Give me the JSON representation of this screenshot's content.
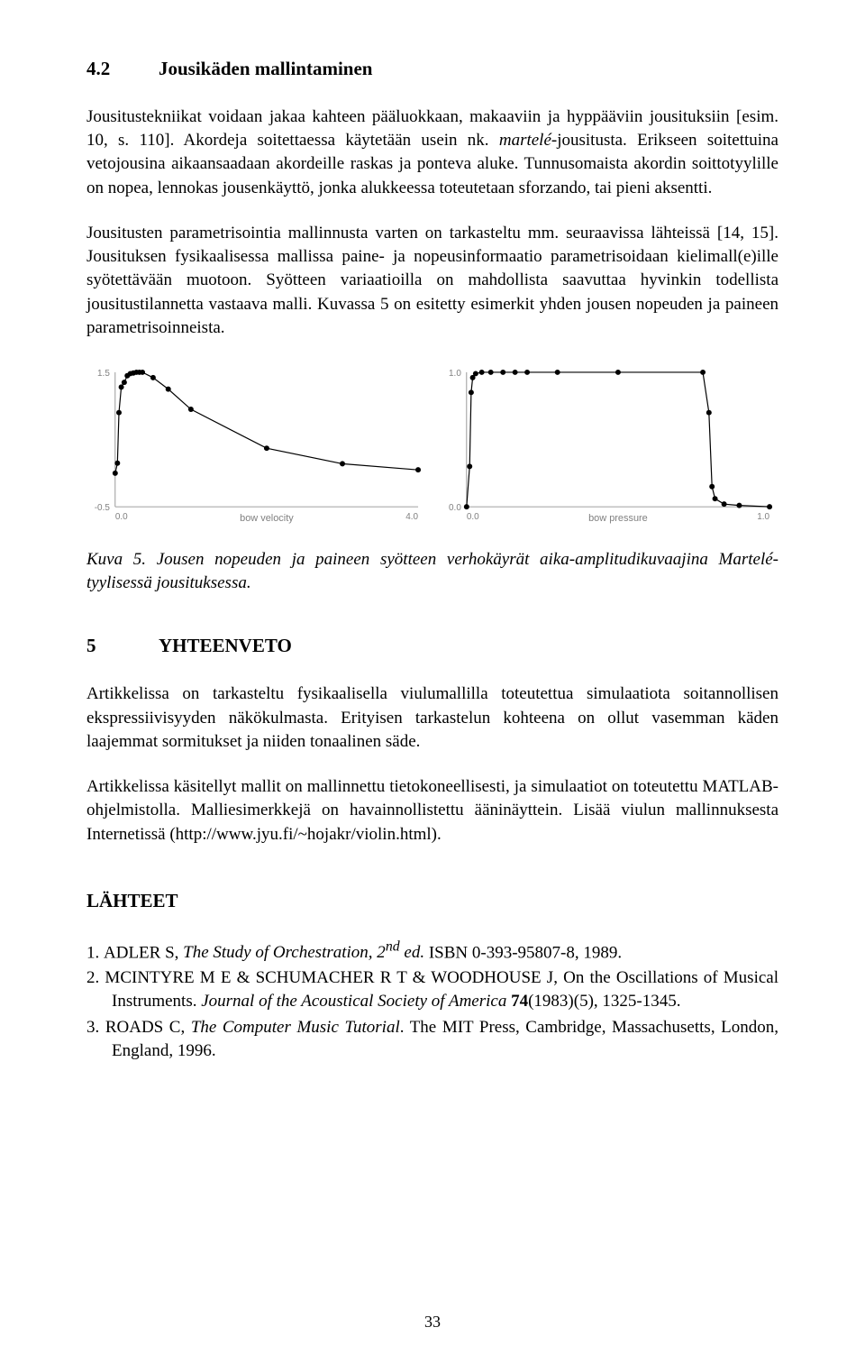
{
  "section42": {
    "num": "4.2",
    "title": "Jousikäden mallintaminen",
    "p1_a": "Jousitustekniikat voidaan jakaa kahteen pääluokkaan, makaaviin ja hyppääviin jousituksiin [esim. 10, s. 110]. Akordeja soitettaessa käytetään usein nk. ",
    "p1_b": "martelé",
    "p1_c": "-jousitusta. Erikseen soitettuina vetojousina aikaansaadaan akordeille raskas ja ponteva aluke. Tunnusomaista akordin soittotyylille on nopea, lennokas jousenkäyttö, jonka alukkeessa toteutetaan sforzando, tai pieni aksentti.",
    "p2": "Jousitusten parametrisointia mallinnusta varten on tarkasteltu mm. seuraavissa lähteissä [14, 15]. Jousituksen fysikaalisessa mallissa paine- ja nopeusinformaatio parametrisoidaan kielimall(e)ille syötettävään muotoon. Syötteen variaatioilla on mahdollista saavuttaa hyvinkin todellista jousitustilannetta vastaava malli. Kuvassa 5 on esitetty esimerkit yhden jousen nopeuden ja paineen parametrisoinneista."
  },
  "chart_velocity": {
    "type": "line",
    "x": [
      0.0,
      0.03,
      0.05,
      0.08,
      0.12,
      0.16,
      0.2,
      0.24,
      0.28,
      0.32,
      0.36,
      0.5,
      0.7,
      1.0,
      2.0,
      3.0,
      4.0
    ],
    "y": [
      0.0,
      0.15,
      0.9,
      1.28,
      1.35,
      1.45,
      1.48,
      1.49,
      1.5,
      1.5,
      1.5,
      1.42,
      1.25,
      0.95,
      0.37,
      0.14,
      0.05
    ],
    "xlim": [
      0.0,
      4.0
    ],
    "ylim": [
      -0.5,
      1.5
    ],
    "ytick_labels": [
      "-0.5",
      "1.5"
    ],
    "xtick_labels": [
      "0.0",
      "4.0"
    ],
    "xlabel": "bow velocity",
    "line_color": "#000000",
    "marker_color": "#000000",
    "marker_size": 3,
    "line_width": 1.2,
    "axis_color": "#808080",
    "axis_width": 0.8,
    "text_color": "#808080",
    "label_fontsize": 11,
    "tick_fontsize": 10,
    "background_color": "#ffffff"
  },
  "chart_pressure": {
    "type": "line",
    "x": [
      0.0,
      0.01,
      0.015,
      0.02,
      0.03,
      0.05,
      0.08,
      0.12,
      0.16,
      0.2,
      0.3,
      0.5,
      0.78,
      0.8,
      0.81,
      0.82,
      0.85,
      0.9,
      1.0
    ],
    "y": [
      0.0,
      0.3,
      0.85,
      0.96,
      0.99,
      1.0,
      1.0,
      1.0,
      1.0,
      1.0,
      1.0,
      1.0,
      1.0,
      0.7,
      0.15,
      0.06,
      0.02,
      0.01,
      0.0
    ],
    "xlim": [
      0.0,
      1.0
    ],
    "ylim": [
      0.0,
      1.0
    ],
    "ytick_labels": [
      "0.0",
      "1.0"
    ],
    "xtick_labels": [
      "0.0",
      "1.0"
    ],
    "xlabel": "bow pressure",
    "line_color": "#000000",
    "marker_color": "#000000",
    "marker_size": 3,
    "line_width": 1.2,
    "axis_color": "#808080",
    "axis_width": 0.8,
    "text_color": "#808080",
    "label_fontsize": 11,
    "tick_fontsize": 10,
    "background_color": "#ffffff"
  },
  "caption": "Kuva 5. Jousen nopeuden ja paineen syötteen verhokäyrät aika-amplitudikuvaajina Martelé-tyylisessä jousituksessa.",
  "section5": {
    "num": "5",
    "title": "YHTEENVETO",
    "p1": "Artikkelissa on tarkasteltu fysikaalisella viulumallilla toteutettua simulaatiota soitannollisen ekspressiivisyyden näkökulmasta. Erityisen tarkastelun kohteena on ollut vasemman käden laajemmat sormitukset ja niiden tonaalinen säde.",
    "p2": "Artikkelissa käsitellyt mallit on mallinnettu tietokoneellisesti, ja simulaatiot on toteutettu MATLAB-ohjelmistolla. Malliesimerkkejä on havainnollistettu ääninäyttein. Lisää viulun mallinnuksesta Internetissä (http://www.jyu.fi/~hojakr/violin.html)."
  },
  "refs": {
    "title": "LÄHTEET",
    "items": [
      {
        "n": "1.",
        "a": "ADLER S, ",
        "b": "The Study of Orchestration, 2",
        "sup": "nd",
        "c": " ed.",
        "d": " ISBN 0-393-95807-8, 1989."
      },
      {
        "n": "2.",
        "a": "MCINTYRE M E & SCHUMACHER R T & WOODHOUSE J, On the Oscillations of Musical Instruments. ",
        "b": "Journal of the Acoustical Society of America ",
        "c": "74",
        "d": "(1983)(5), 1325-1345."
      },
      {
        "n": "3.",
        "a": "ROADS C, ",
        "b": "The Computer Music Tutorial",
        "c": ". The MIT Press, Cambridge, Massachusetts, London, England, 1996."
      }
    ]
  },
  "page_number": "33"
}
